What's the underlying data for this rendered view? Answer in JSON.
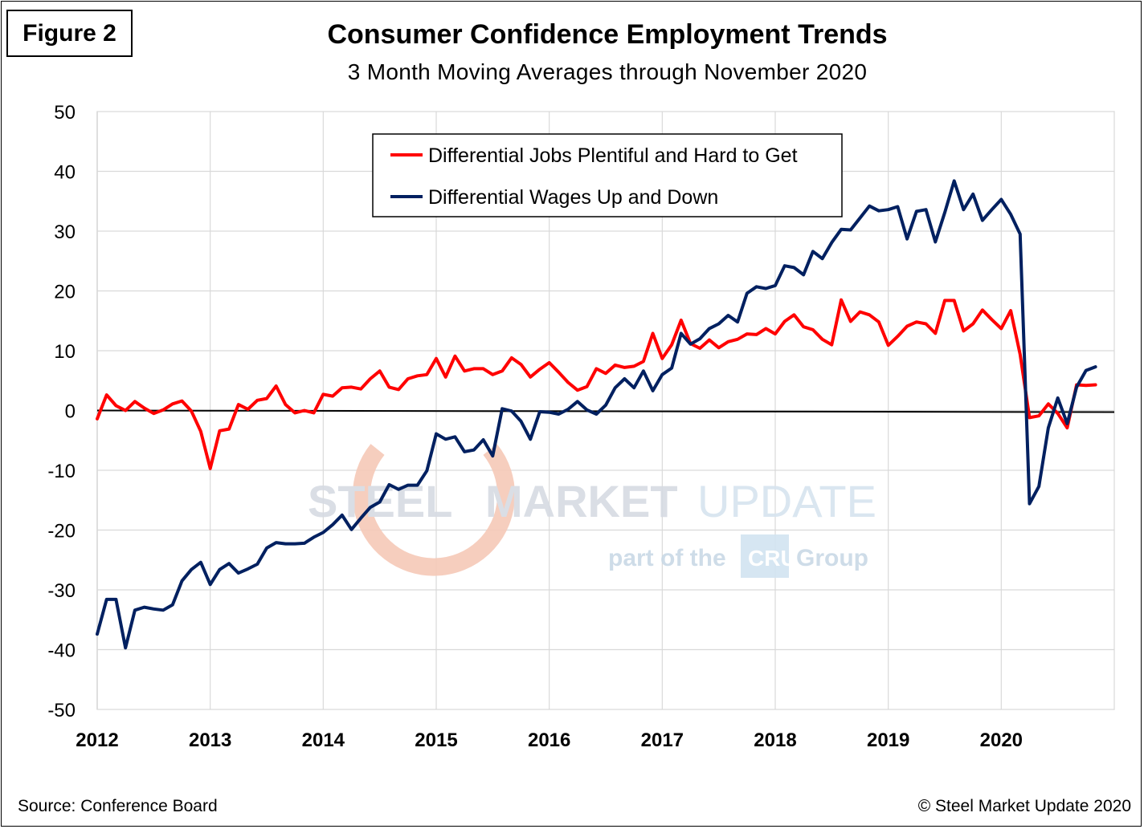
{
  "figure_label": "Figure 2",
  "source": "Source: Conference Board",
  "copyright": "© Steel Market Update 2020",
  "watermark": {
    "line1a": "STEEL",
    "line1b": "MARKET",
    "line1c": "UPDATE",
    "line2a": "part of the",
    "badge": "CRU",
    "line2b": "Group"
  },
  "chart_data": {
    "type": "line",
    "title": "Consumer Confidence Employment Trends",
    "subtitle": "3 Month Moving Averages through November 2020",
    "xlabel": "",
    "ylabel": "",
    "ylim": [
      -50,
      50
    ],
    "yticks": [
      50,
      40,
      30,
      20,
      10,
      0,
      -10,
      -20,
      -30,
      -40,
      -50
    ],
    "xlim": [
      2012,
      2021
    ],
    "xticks": [
      "2012",
      "2013",
      "2014",
      "2015",
      "2016",
      "2017",
      "2018",
      "2019",
      "2020"
    ],
    "grid": true,
    "legend_position": "top-center",
    "series": [
      {
        "name": "Differential Jobs Plentiful and Hard to Get",
        "color": "#ff0000",
        "values": [
          -1.4,
          2.6,
          0.8,
          0,
          1.5,
          0.4,
          -0.5,
          0.1,
          1.1,
          1.6,
          -0.1,
          -3.5,
          -9.7,
          -3.4,
          -3.1,
          1,
          0.2,
          1.7,
          2,
          4.1,
          1,
          -0.4,
          0,
          -0.4,
          2.7,
          2.4,
          3.8,
          3.9,
          3.6,
          5.3,
          6.6,
          3.9,
          3.5,
          5.3,
          5.8,
          6,
          8.7,
          5.6,
          9.1,
          6.6,
          7,
          7,
          6,
          6.6,
          8.8,
          7.7,
          5.6,
          6.9,
          8,
          6.4,
          4.7,
          3.4,
          4,
          7,
          6.2,
          7.6,
          7.2,
          7.4,
          8.2,
          12.9,
          8.7,
          11,
          15.1,
          11.2,
          10.4,
          11.8,
          10.5,
          11.5,
          11.9,
          12.8,
          12.7,
          13.7,
          12.8,
          14.9,
          16,
          14,
          13.5,
          11.9,
          11,
          18.5,
          14.9,
          16.5,
          16,
          14.8,
          10.9,
          12.4,
          14.1,
          14.8,
          14.5,
          12.9,
          18.4,
          18.4,
          13.3,
          14.5,
          16.8,
          15.2,
          13.7,
          16.7,
          9.4,
          -1.2,
          -0.9,
          1.1,
          -0.5,
          -2.9,
          4.3,
          4.2,
          4.3
        ],
        "last_value": 4.3
      },
      {
        "name": "Differential Wages Up and Down",
        "color": "#002060",
        "values": [
          -37.4,
          -31.6,
          -31.6,
          -39.7,
          -33.4,
          -32.9,
          -33.2,
          -33.4,
          -32.5,
          -28.5,
          -26.6,
          -25.4,
          -29.1,
          -26.6,
          -25.6,
          -27.2,
          -26.5,
          -25.7,
          -23,
          -22.1,
          -22.3,
          -22.3,
          -22.2,
          -21.2,
          -20.4,
          -19.1,
          -17.5,
          -19.9,
          -18,
          -16.2,
          -15.3,
          -12.4,
          -13.2,
          -12.5,
          -12.5,
          -10.1,
          -3.9,
          -4.8,
          -4.4,
          -6.9,
          -6.6,
          -4.9,
          -7.6,
          0.3,
          -0.1,
          -1.8,
          -4.8,
          -0.2,
          -0.3,
          -0.6,
          0.2,
          1.5,
          0.1,
          -0.6,
          0.9,
          3.8,
          5.3,
          3.8,
          6.6,
          3.3,
          6,
          7.1,
          12.9,
          11.1,
          12,
          13.7,
          14.5,
          15.9,
          14.8,
          19.6,
          20.7,
          20.4,
          20.9,
          24.2,
          23.9,
          22.7,
          26.6,
          25.4,
          28.1,
          30.3,
          30.2,
          32.2,
          34.2,
          33.4,
          33.6,
          34.1,
          28.7,
          33.3,
          33.6,
          28.2,
          33.1,
          38.4,
          33.6,
          36.2,
          31.8,
          33.6,
          35.3,
          32.8,
          29.5,
          -15.6,
          -12.7,
          -2.9,
          2.1,
          -2.2,
          3.9,
          6.7,
          7.3
        ],
        "last_value": 7.3
      }
    ],
    "reference_line": {
      "y": 0,
      "color": "#000000"
    }
  }
}
